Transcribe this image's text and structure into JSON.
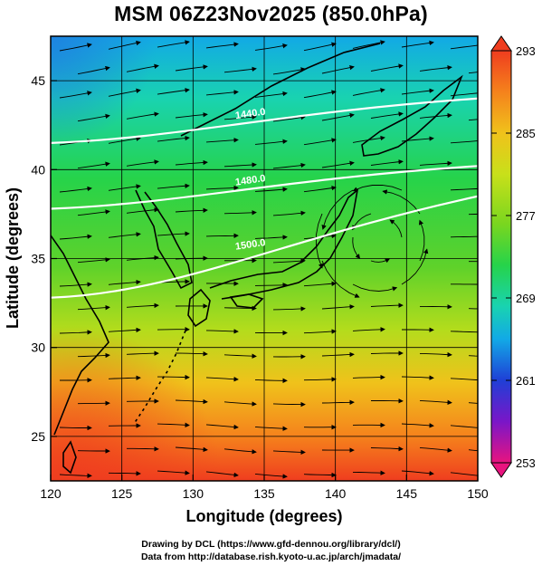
{
  "title": "MSM 06Z23Nov2025 (850.0hPa)",
  "x_axis": {
    "label": "Longitude (degrees)",
    "ticks": [
      "120",
      "125",
      "130",
      "135",
      "140",
      "145",
      "150"
    ],
    "range": [
      120,
      150
    ]
  },
  "y_axis": {
    "label": "Latitude  (degrees)",
    "ticks": [
      "25",
      "30",
      "35",
      "40",
      "45"
    ],
    "range": [
      22.5,
      47.5
    ]
  },
  "colorbar": {
    "ticks": [
      "293",
      "285",
      "277",
      "269",
      "261",
      "253"
    ],
    "range": [
      253,
      293
    ],
    "colors": [
      "#e8147f",
      "#7a16c8",
      "#1f3fd6",
      "#12a9e6",
      "#19d3b0",
      "#26d34a",
      "#7ad61f",
      "#c8e01a",
      "#f0c21b",
      "#f5821c",
      "#ef3d1f"
    ]
  },
  "contours": [
    {
      "label": "1440.0",
      "lat_at_120": 41.5,
      "lat_at_150": 44.0
    },
    {
      "label": "1480.0",
      "lat_at_120": 37.8,
      "lat_at_150": 40.2
    },
    {
      "label": "1500.0",
      "lat_at_120": 32.8,
      "lat_at_150": 38.5
    }
  ],
  "credits": {
    "line1": "Drawing by DCL (https://www.gfd-dennou.org/library/dcl/)",
    "line2": "Data from http://database.rish.kyoto-u.ac.jp/arch/jmadata/"
  }
}
